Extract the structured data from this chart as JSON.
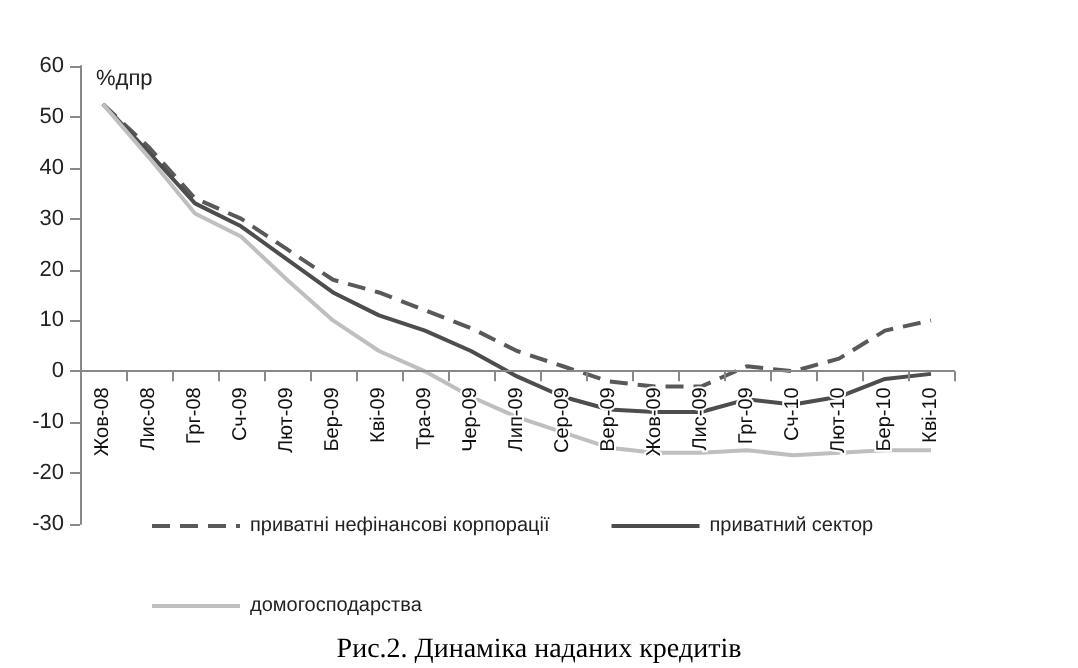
{
  "chart_data": {
    "type": "line",
    "ylabel": "%дпр",
    "annotations": [
      "Рис.2. Динаміка наданих кредитів"
    ],
    "categories": [
      "Жов-08",
      "Лис-08",
      "Грг-08",
      "Сч-09",
      "Лют-09",
      "Бер-09",
      "Кві-09",
      "Тра-09",
      "Чер-09",
      "Лип-09",
      "Сер-09",
      "Вер-09",
      "Жов-09",
      "Лис-09",
      "Грг-09",
      "Сч-10",
      "Лют-10",
      "Бер-10",
      "Кві-10"
    ],
    "series": [
      {
        "name": "приватні нефінансові корпорації",
        "color": "#595959",
        "line_style": "dashed",
        "values": [
          52.5,
          44,
          34,
          30,
          24,
          18,
          15.5,
          12,
          8.5,
          4,
          1,
          -2,
          -3,
          -3,
          1,
          0,
          2.5,
          8,
          10
        ]
      },
      {
        "name": "приватний сектор",
        "color": "#4d4d4d",
        "line_style": "solid",
        "values": [
          52.5,
          43,
          33,
          28.5,
          22,
          15.5,
          11,
          8,
          4,
          -1,
          -5,
          -7.5,
          -8,
          -8,
          -5.5,
          -6.5,
          -5,
          -1.5,
          -0.5
        ]
      },
      {
        "name": "домогосподарства",
        "color": "#bfbfbf",
        "line_style": "solid",
        "values": [
          52.5,
          42,
          31,
          26.5,
          18,
          10,
          4,
          0,
          -5,
          -9,
          -12,
          -15,
          -16,
          -16,
          -15.5,
          -16.5,
          -16,
          -15.5,
          -15.5
        ]
      }
    ],
    "ylim": [
      -30,
      60
    ],
    "yticks": [
      -30,
      -20,
      -10,
      0,
      10,
      20,
      30,
      40,
      50,
      60
    ],
    "grid": false,
    "legend": "bottom",
    "marker": "none"
  }
}
